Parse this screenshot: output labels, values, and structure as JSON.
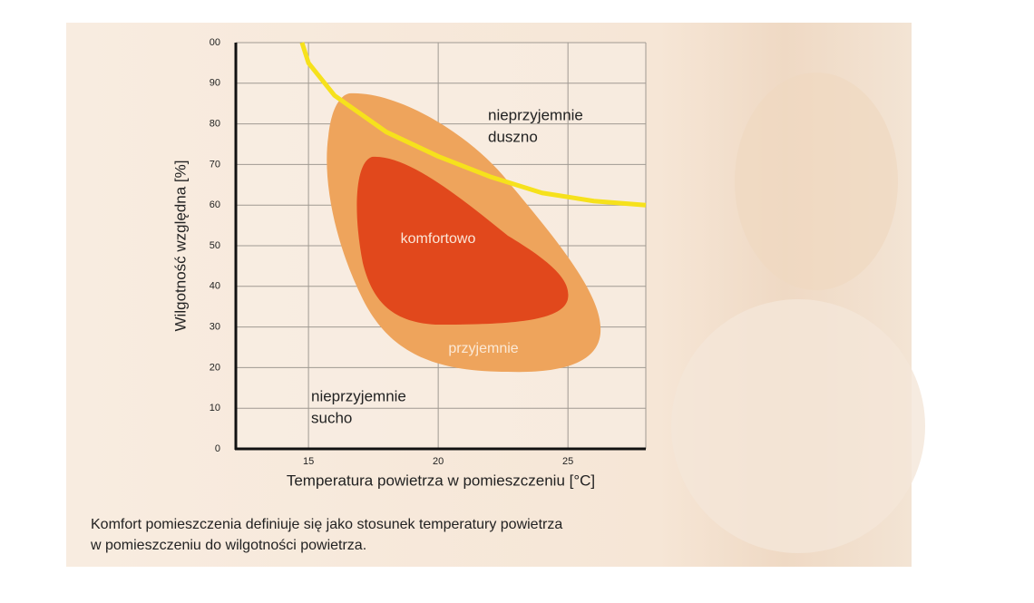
{
  "chart_data": {
    "type": "line",
    "x_label": "Temperatura powietrza w pomieszczeniu [°C]",
    "y_label": "Wilgotność względna [%]",
    "xlim": [
      12.2,
      28
    ],
    "xticks": [
      15,
      20,
      25
    ],
    "ylim": [
      0,
      100
    ],
    "yticks": [
      0,
      10,
      20,
      30,
      40,
      50,
      60,
      70,
      80,
      90,
      {
        "value": 100,
        "label": "00"
      }
    ],
    "grid": true,
    "series": [
      {
        "color": "#f6e11c",
        "x": [
          14.75,
          15,
          16,
          18,
          20,
          22,
          24,
          26,
          28
        ],
        "values": [
          100,
          95,
          87,
          78,
          72,
          67,
          63,
          61,
          60
        ]
      }
    ],
    "annotations": {
      "duszno": [
        "nieprzyjemnie",
        "duszno"
      ],
      "komfortowo": "komfortowo",
      "przyjemnie": "przyjemnie",
      "sucho": [
        "nieprzyjemnie",
        "sucho"
      ]
    },
    "caption": [
      "Komfort pomieszczenia definiuje się jako stosunek temperatury powietrza",
      "w pomieszczeniu do wilgotności powietrza."
    ]
  }
}
